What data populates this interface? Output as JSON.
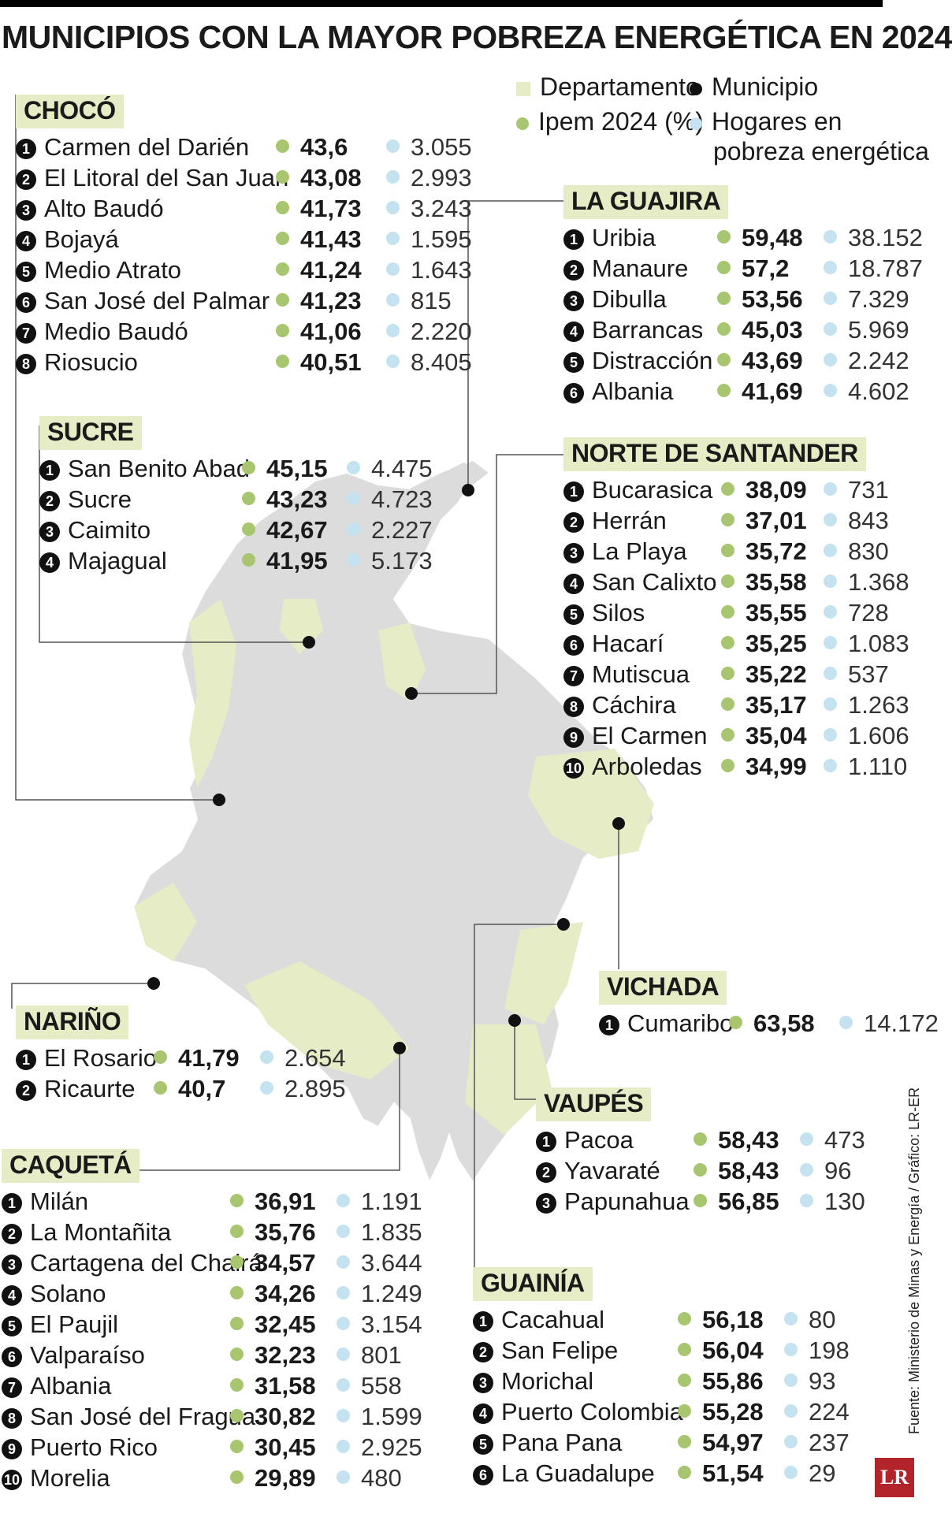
{
  "title": "MUNICIPIOS CON LA MAYOR POBREZA ENERGÉTICA EN 2024",
  "legend": {
    "departamento": "Departamento",
    "municipio": "Municipio",
    "ipem": "Ipem 2024 (%)",
    "hogares_line1": "Hogares en",
    "hogares_line2": "pobreza energética"
  },
  "colors": {
    "departamento": "#e6ecc6",
    "ipem": "#a7c66f",
    "hogares": "#c5e2f0",
    "map": "#dcdcdc"
  },
  "regions": {
    "choco": {
      "name": "CHOCÓ",
      "rows": [
        {
          "n": "1",
          "name": "Carmen del Darién",
          "ipem": "43,6",
          "hogares": "3.055"
        },
        {
          "n": "2",
          "name": "El Litoral del San Juan",
          "ipem": "43,08",
          "hogares": "2.993"
        },
        {
          "n": "3",
          "name": "Alto Baudó",
          "ipem": "41,73",
          "hogares": "3.243"
        },
        {
          "n": "4",
          "name": "Bojayá",
          "ipem": "41,43",
          "hogares": "1.595"
        },
        {
          "n": "5",
          "name": "Medio Atrato",
          "ipem": "41,24",
          "hogares": "1.643"
        },
        {
          "n": "6",
          "name": "San José del Palmar",
          "ipem": "41,23",
          "hogares": "815"
        },
        {
          "n": "7",
          "name": "Medio Baudó",
          "ipem": "41,06",
          "hogares": "2.220"
        },
        {
          "n": "8",
          "name": "Riosucio",
          "ipem": "40,51",
          "hogares": "8.405"
        }
      ]
    },
    "sucre": {
      "name": "SUCRE",
      "rows": [
        {
          "n": "1",
          "name": "San Benito Abad",
          "ipem": "45,15",
          "hogares": "4.475"
        },
        {
          "n": "2",
          "name": "Sucre",
          "ipem": "43,23",
          "hogares": "4.723"
        },
        {
          "n": "3",
          "name": "Caimito",
          "ipem": "42,67",
          "hogares": "2.227"
        },
        {
          "n": "4",
          "name": "Majagual",
          "ipem": "41,95",
          "hogares": "5.173"
        }
      ]
    },
    "guajira": {
      "name": "LA GUAJIRA",
      "rows": [
        {
          "n": "1",
          "name": "Uribia",
          "ipem": "59,48",
          "hogares": "38.152"
        },
        {
          "n": "2",
          "name": "Manaure",
          "ipem": "57,2",
          "hogares": "18.787"
        },
        {
          "n": "3",
          "name": "Dibulla",
          "ipem": "53,56",
          "hogares": "7.329"
        },
        {
          "n": "4",
          "name": "Barrancas",
          "ipem": "45,03",
          "hogares": "5.969"
        },
        {
          "n": "5",
          "name": "Distracción",
          "ipem": "43,69",
          "hogares": "2.242"
        },
        {
          "n": "6",
          "name": "Albania",
          "ipem": "41,69",
          "hogares": "4.602"
        }
      ]
    },
    "norte": {
      "name": "NORTE DE SANTANDER",
      "rows": [
        {
          "n": "1",
          "name": "Bucarasica",
          "ipem": "38,09",
          "hogares": "731"
        },
        {
          "n": "2",
          "name": "Herrán",
          "ipem": "37,01",
          "hogares": "843"
        },
        {
          "n": "3",
          "name": "La Playa",
          "ipem": "35,72",
          "hogares": "830"
        },
        {
          "n": "4",
          "name": "San Calixto",
          "ipem": "35,58",
          "hogares": "1.368"
        },
        {
          "n": "5",
          "name": "Silos",
          "ipem": "35,55",
          "hogares": "728"
        },
        {
          "n": "6",
          "name": "Hacarí",
          "ipem": "35,25",
          "hogares": "1.083"
        },
        {
          "n": "7",
          "name": "Mutiscua",
          "ipem": "35,22",
          "hogares": "537"
        },
        {
          "n": "8",
          "name": "Cáchira",
          "ipem": "35,17",
          "hogares": "1.263"
        },
        {
          "n": "9",
          "name": "El Carmen",
          "ipem": "35,04",
          "hogares": "1.606"
        },
        {
          "n": "10",
          "name": "Arboledas",
          "ipem": "34,99",
          "hogares": "1.110"
        }
      ]
    },
    "vichada": {
      "name": "VICHADA",
      "rows": [
        {
          "n": "1",
          "name": "Cumaribo",
          "ipem": "63,58",
          "hogares": "14.172"
        }
      ]
    },
    "narino": {
      "name": "NARIÑO",
      "rows": [
        {
          "n": "1",
          "name": "El Rosario",
          "ipem": "41,79",
          "hogares": "2.654"
        },
        {
          "n": "2",
          "name": "Ricaurte",
          "ipem": "40,7",
          "hogares": "2.895"
        }
      ]
    },
    "vaupes": {
      "name": "VAUPÉS",
      "rows": [
        {
          "n": "1",
          "name": "Pacoa",
          "ipem": "58,43",
          "hogares": "473"
        },
        {
          "n": "2",
          "name": "Yavaraté",
          "ipem": "58,43",
          "hogares": "96"
        },
        {
          "n": "3",
          "name": "Papunahua",
          "ipem": "56,85",
          "hogares": "130"
        }
      ]
    },
    "caqueta": {
      "name": "CAQUETÁ",
      "rows": [
        {
          "n": "1",
          "name": "Milán",
          "ipem": "36,91",
          "hogares": "1.191"
        },
        {
          "n": "2",
          "name": "La Montañita",
          "ipem": "35,76",
          "hogares": "1.835"
        },
        {
          "n": "3",
          "name": "Cartagena del Chairá",
          "ipem": "34,57",
          "hogares": "3.644"
        },
        {
          "n": "4",
          "name": "Solano",
          "ipem": "34,26",
          "hogares": "1.249"
        },
        {
          "n": "5",
          "name": "El Paujil",
          "ipem": "32,45",
          "hogares": "3.154"
        },
        {
          "n": "6",
          "name": "Valparaíso",
          "ipem": "32,23",
          "hogares": "801"
        },
        {
          "n": "7",
          "name": "Albania",
          "ipem": "31,58",
          "hogares": "558"
        },
        {
          "n": "8",
          "name": "San José del Fragua",
          "ipem": "30,82",
          "hogares": "1.599"
        },
        {
          "n": "9",
          "name": "Puerto Rico",
          "ipem": "30,45",
          "hogares": "2.925"
        },
        {
          "n": "10",
          "name": "Morelia",
          "ipem": "29,89",
          "hogares": "480"
        }
      ]
    },
    "guainia": {
      "name": "GUAINÍA",
      "rows": [
        {
          "n": "1",
          "name": "Cacahual",
          "ipem": "56,18",
          "hogares": "80"
        },
        {
          "n": "2",
          "name": "San Felipe",
          "ipem": "56,04",
          "hogares": "198"
        },
        {
          "n": "3",
          "name": "Morichal",
          "ipem": "55,86",
          "hogares": "93"
        },
        {
          "n": "4",
          "name": "Puerto Colombia",
          "ipem": "55,28",
          "hogares": "224"
        },
        {
          "n": "5",
          "name": "Pana Pana",
          "ipem": "54,97",
          "hogares": "237"
        },
        {
          "n": "6",
          "name": "La Guadalupe",
          "ipem": "51,54",
          "hogares": "29"
        }
      ]
    }
  },
  "source": "Fuente: Ministerio de Minas y Energía / Gráfico: LR-ER",
  "logo": "LR"
}
